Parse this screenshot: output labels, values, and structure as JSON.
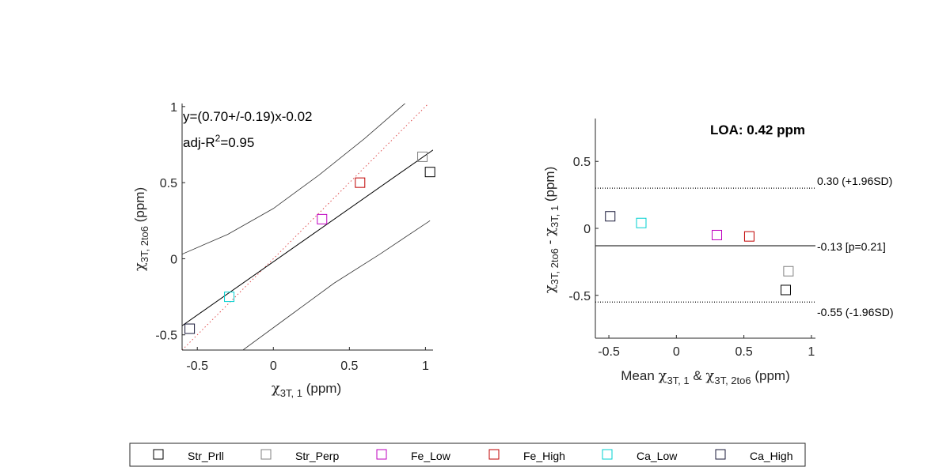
{
  "chart_data": [
    {
      "type": "scatter",
      "xlim": [
        -0.6,
        1.05
      ],
      "ylim": [
        -0.6,
        1.02
      ],
      "xticks": [
        -0.5,
        0,
        0.5,
        1
      ],
      "xtick_labels": [
        "-0.5",
        "0",
        "0.5",
        "1"
      ],
      "yticks": [
        -0.5,
        0,
        0.5,
        1
      ],
      "ytick_labels": [
        "-0.5",
        "0",
        "0.5",
        "1"
      ],
      "xlabel": {
        "sym": "χ",
        "sub": "3T, 1",
        "tail": " (ppm)"
      },
      "ylabel": {
        "sym": "χ",
        "sub": "3T, 2to6",
        "tail": " (ppm)"
      },
      "annotation_line1": "y=(0.70+/-0.19)x-0.02",
      "annotation_line2_pre": "adj-R",
      "annotation_line2_sup": "2",
      "annotation_line2_post": "=0.95",
      "fit": {
        "slope": 0.7,
        "intercept": -0.02
      },
      "identity_line": true,
      "confidence_band": {
        "upper": [
          [
            -0.6,
            0.03
          ],
          [
            -0.3,
            0.16
          ],
          [
            0,
            0.33
          ],
          [
            0.3,
            0.55
          ],
          [
            0.6,
            0.79
          ],
          [
            0.9,
            1.05
          ]
        ],
        "lower": [
          [
            -0.2,
            -0.6
          ],
          [
            0.1,
            -0.38
          ],
          [
            0.4,
            -0.16
          ],
          [
            0.7,
            0.03
          ],
          [
            1.03,
            0.25
          ]
        ]
      },
      "points": [
        {
          "series": "Str_Prll",
          "x": 1.03,
          "y": 0.57
        },
        {
          "series": "Str_Perp",
          "x": 0.98,
          "y": 0.67
        },
        {
          "series": "Fe_Low",
          "x": 0.32,
          "y": 0.26
        },
        {
          "series": "Fe_High",
          "x": 0.57,
          "y": 0.5
        },
        {
          "series": "Ca_Low",
          "x": -0.29,
          "y": -0.25
        },
        {
          "series": "Ca_High",
          "x": -0.55,
          "y": -0.46
        }
      ]
    },
    {
      "type": "scatter",
      "title": "LOA: 0.42 ppm",
      "xlim": [
        -0.6,
        1.03
      ],
      "ylim": [
        -0.82,
        0.82
      ],
      "xticks": [
        -0.5,
        0,
        0.5,
        1
      ],
      "xtick_labels": [
        "-0.5",
        "0",
        "0.5",
        "1"
      ],
      "yticks": [
        -0.5,
        0,
        0.5
      ],
      "ytick_labels": [
        "-0.5",
        "0",
        "0.5"
      ],
      "xlabel": {
        "pre": "Mean ",
        "sym1": "χ",
        "sub1": "3T, 1",
        "mid": " & ",
        "sym2": "χ",
        "sub2": "3T, 2to6",
        "tail": " (ppm)"
      },
      "ylabel": {
        "sym1": "χ",
        "sub1": "3T, 2to6",
        "mid": " - ",
        "sym2": "χ",
        "sub2": "3T, 1",
        "tail": " (ppm)"
      },
      "mean_line": {
        "y": -0.13,
        "label": "-0.13 [p=0.21]"
      },
      "upper_loa": {
        "y": 0.3,
        "label": "0.30 (+1.96SD)"
      },
      "lower_loa": {
        "y": -0.55,
        "label": "-0.55 (-1.96SD)"
      },
      "points": [
        {
          "series": "Str_Prll",
          "x": 0.81,
          "y": -0.46
        },
        {
          "series": "Str_Perp",
          "x": 0.83,
          "y": -0.32
        },
        {
          "series": "Fe_Low",
          "x": 0.3,
          "y": -0.05
        },
        {
          "series": "Fe_High",
          "x": 0.54,
          "y": -0.06
        },
        {
          "series": "Ca_Low",
          "x": -0.26,
          "y": 0.04
        },
        {
          "series": "Ca_High",
          "x": -0.49,
          "y": 0.09
        }
      ]
    }
  ],
  "legend": {
    "placement": "bottom",
    "entries": [
      {
        "name": "Str_Prll",
        "color": "#000000"
      },
      {
        "name": "Str_Perp",
        "color": "#808080"
      },
      {
        "name": "Fe_Low",
        "color": "#bf00bf"
      },
      {
        "name": "Fe_High",
        "color": "#c00000"
      },
      {
        "name": "Ca_Low",
        "color": "#00d0d0"
      },
      {
        "name": "Ca_High",
        "color": "#1a1a3a"
      }
    ]
  }
}
